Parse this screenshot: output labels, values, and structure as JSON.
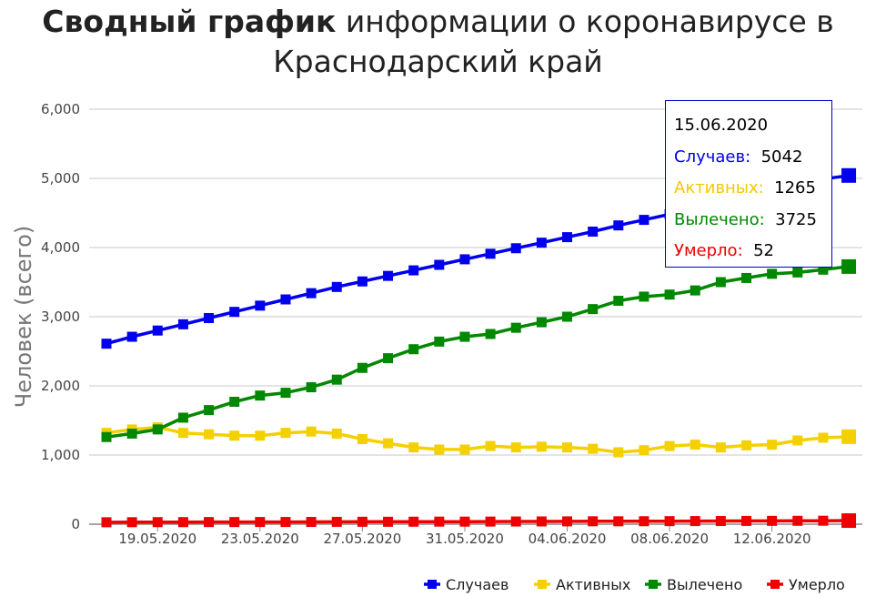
{
  "title": {
    "bold": "Сводный график",
    "rest": " информации о коронавирусе в",
    "line2": "Краснодарский край"
  },
  "chart_data": {
    "type": "line",
    "ylabel": "Человек (всего)",
    "xlabel": "",
    "ylim": [
      0,
      6000
    ],
    "yticks": [
      "0",
      "1,000",
      "2,000",
      "3,000",
      "4,000",
      "5,000",
      "6,000"
    ],
    "grid": true,
    "legend_position": "bottom-right",
    "x": [
      "17.05.2020",
      "18.05.2020",
      "19.05.2020",
      "20.05.2020",
      "21.05.2020",
      "22.05.2020",
      "23.05.2020",
      "24.05.2020",
      "25.05.2020",
      "26.05.2020",
      "27.05.2020",
      "28.05.2020",
      "29.05.2020",
      "30.05.2020",
      "31.05.2020",
      "01.06.2020",
      "02.06.2020",
      "03.06.2020",
      "04.06.2020",
      "05.06.2020",
      "06.06.2020",
      "07.06.2020",
      "08.06.2020",
      "09.06.2020",
      "10.06.2020",
      "11.06.2020",
      "12.06.2020",
      "13.06.2020",
      "14.06.2020",
      "15.06.2020"
    ],
    "xtick_labels": [
      "19.05.2020",
      "23.05.2020",
      "27.05.2020",
      "31.05.2020",
      "04.06.2020",
      "08.06.2020",
      "12.06.2020"
    ],
    "series": [
      {
        "name": "Случаев",
        "color": "#0000ee",
        "values": [
          2610,
          2710,
          2800,
          2890,
          2980,
          3070,
          3160,
          3250,
          3340,
          3430,
          3510,
          3590,
          3670,
          3750,
          3830,
          3910,
          3990,
          4070,
          4150,
          4230,
          4320,
          4400,
          4480,
          4580,
          4670,
          4760,
          4840,
          4920,
          4990,
          5042
        ]
      },
      {
        "name": "Активных",
        "color": "#f5d000",
        "values": [
          1320,
          1370,
          1400,
          1320,
          1300,
          1280,
          1280,
          1320,
          1340,
          1310,
          1230,
          1170,
          1110,
          1080,
          1080,
          1130,
          1110,
          1120,
          1110,
          1090,
          1040,
          1070,
          1130,
          1150,
          1110,
          1140,
          1150,
          1210,
          1250,
          1265
        ]
      },
      {
        "name": "Вылечено",
        "color": "#008800",
        "values": [
          1260,
          1310,
          1370,
          1540,
          1650,
          1770,
          1860,
          1900,
          1980,
          2090,
          2260,
          2400,
          2530,
          2640,
          2710,
          2750,
          2840,
          2920,
          3000,
          3110,
          3230,
          3290,
          3320,
          3380,
          3500,
          3560,
          3620,
          3640,
          3680,
          3725
        ]
      },
      {
        "name": "Умерло",
        "color": "#ee0000",
        "values": [
          28,
          29,
          30,
          30,
          31,
          31,
          32,
          32,
          33,
          34,
          35,
          35,
          36,
          37,
          37,
          38,
          39,
          40,
          41,
          42,
          42,
          43,
          44,
          45,
          46,
          47,
          48,
          49,
          50,
          52
        ]
      }
    ]
  },
  "tooltip": {
    "date": "15.06.2020",
    "cases_label": "Случаев:",
    "cases_value": "5042",
    "active_label": "Активных:",
    "active_value": "1265",
    "recovered_label": "Вылечено:",
    "recovered_value": "3725",
    "deaths_label": "Умерло:",
    "deaths_value": "52",
    "colors": {
      "cases": "#0000ee",
      "active": "#f5c800",
      "recovered": "#008800",
      "deaths": "#ee0000"
    }
  }
}
